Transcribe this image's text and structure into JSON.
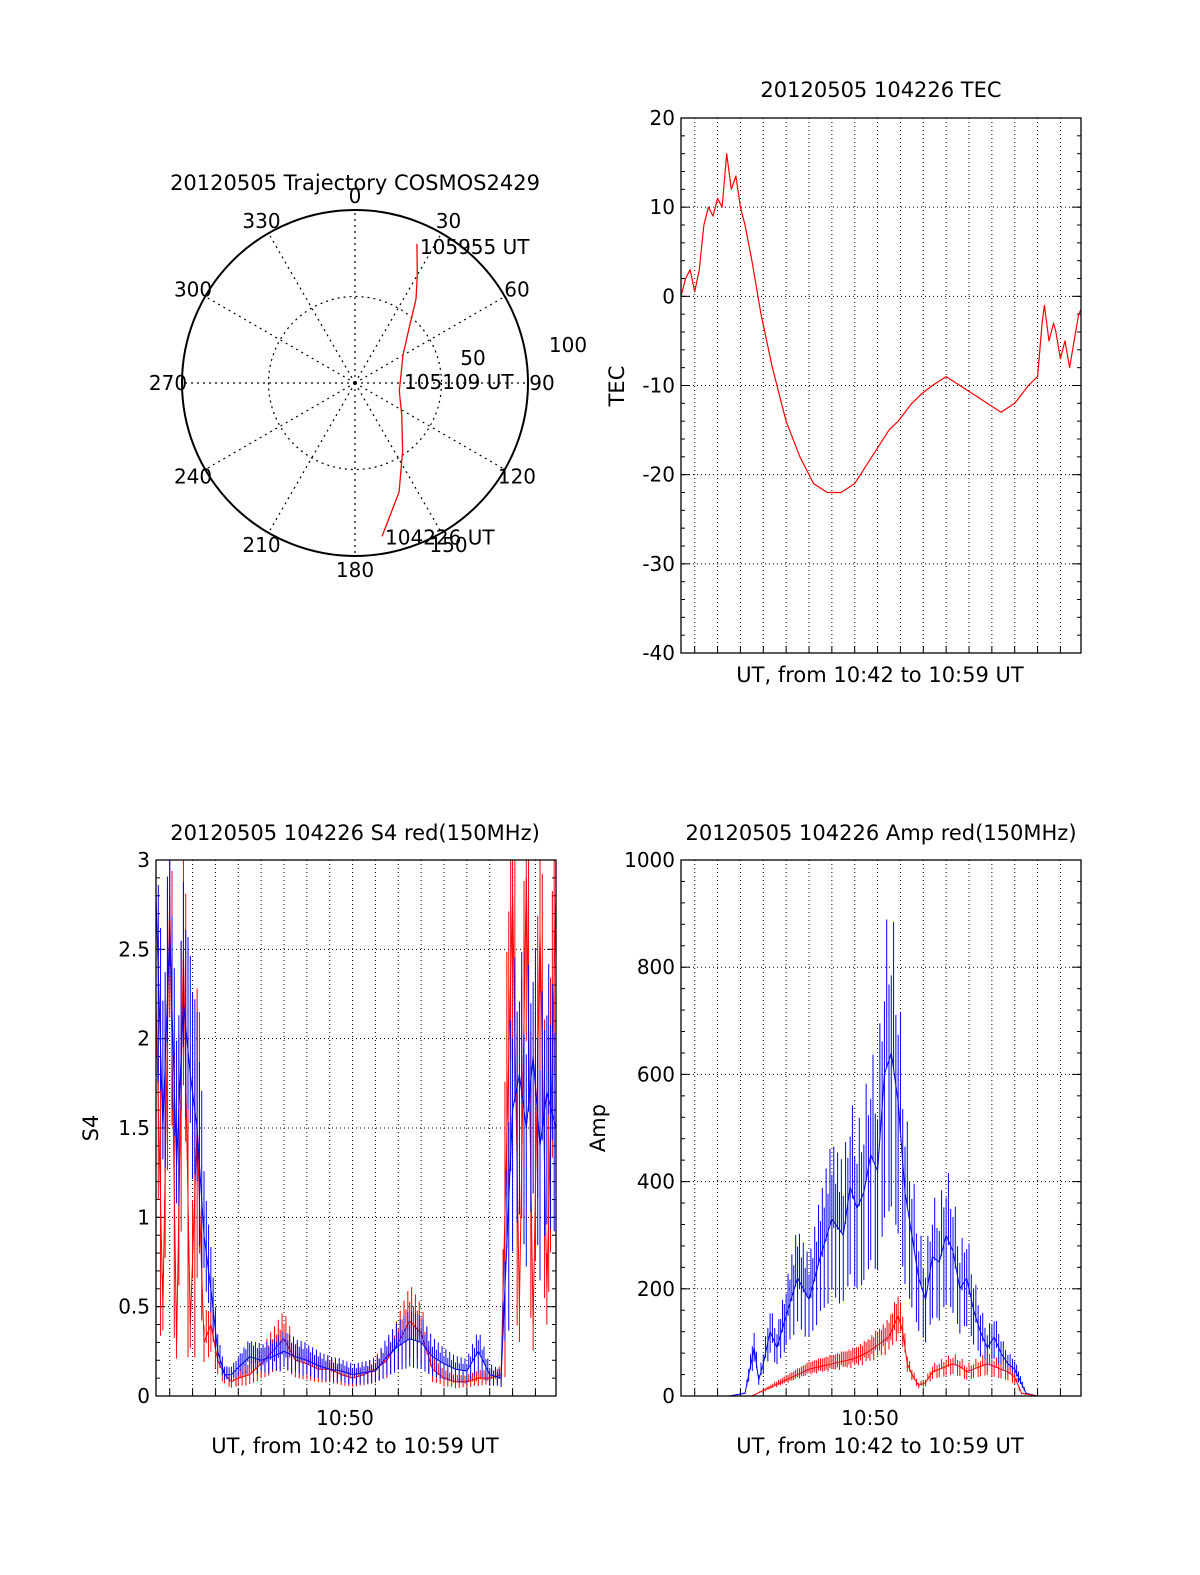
{
  "colors": {
    "red": "#ff0000",
    "blue": "#0000ff",
    "axis": "#000000",
    "grid": "#000000"
  },
  "chart_data": [
    {
      "type": "polar",
      "title": "20120505 Trajectory COSMOS2429",
      "angle_labels": [
        "0",
        "30",
        "60",
        "90",
        "120",
        "150",
        "180",
        "210",
        "240",
        "270",
        "300",
        "330"
      ],
      "radius_labels": [
        "50",
        "100"
      ],
      "rmax": 100,
      "track_labels": [
        {
          "text": "105955 UT",
          "at": "end"
        },
        {
          "text": "105109 UT",
          "at": "middle"
        },
        {
          "text": "104226 UT",
          "at": "start"
        }
      ],
      "trajectory": {
        "color": "red",
        "points": [
          {
            "az": 170,
            "r": 90
          },
          {
            "az": 158,
            "r": 68
          },
          {
            "az": 145,
            "r": 48
          },
          {
            "az": 125,
            "r": 33
          },
          {
            "az": 100,
            "r": 26
          },
          {
            "az": 80,
            "r": 27
          },
          {
            "az": 60,
            "r": 32
          },
          {
            "az": 45,
            "r": 44
          },
          {
            "az": 36,
            "r": 60
          },
          {
            "az": 30,
            "r": 72
          },
          {
            "az": 24,
            "r": 88
          }
        ]
      }
    },
    {
      "type": "line",
      "title": "20120505 104226 TEC",
      "ylabel": "TEC",
      "xlabel": "UT, from 10:42 to 10:59 UT",
      "xlim": [
        42.4,
        59.9
      ],
      "ylim": [
        -40,
        20
      ],
      "yticks": [
        "20",
        "10",
        "0",
        "-10",
        "-20",
        "-30",
        "-40"
      ],
      "grid": true,
      "series": [
        {
          "color": "red",
          "x": [
            42.4,
            42.6,
            42.8,
            43.0,
            43.2,
            43.4,
            43.6,
            43.8,
            44.0,
            44.2,
            44.4,
            44.6,
            44.8,
            45.0,
            45.2,
            45.5,
            45.9,
            46.4,
            47.0,
            47.6,
            48.2,
            48.8,
            49.4,
            50.0,
            50.5,
            51.0,
            51.5,
            51.9,
            52.2,
            52.5,
            52.9,
            53.4,
            54.0,
            54.6,
            55.2,
            55.8,
            56.4,
            57.0,
            57.6,
            58.0,
            58.2,
            58.3,
            58.5,
            58.7,
            58.8,
            59.0,
            59.2,
            59.4,
            59.6,
            59.8,
            59.9
          ],
          "y": [
            0,
            2,
            3,
            0.5,
            3,
            8,
            10,
            9,
            11,
            10,
            16,
            12,
            13.5,
            10,
            8,
            4,
            -2,
            -8,
            -14,
            -18,
            -21,
            -22,
            -22,
            -21,
            -19,
            -17,
            -15,
            -14,
            -13,
            -12,
            -11,
            -10,
            -9,
            -10,
            -11,
            -12,
            -13,
            -12,
            -10,
            -9,
            -3,
            -1,
            -5,
            -3,
            -4,
            -7,
            -5,
            -8,
            -5,
            -2,
            -1.5
          ]
        }
      ]
    },
    {
      "type": "line",
      "title": "20120505 104226 S4 red(150MHz)",
      "ylabel": "S4",
      "xlabel": "UT, from 10:42 to 10:59 UT",
      "xtick_label": "10:50",
      "xlim": [
        42.4,
        59.9
      ],
      "ylim": [
        0,
        3
      ],
      "yticks": [
        "3",
        "2.5",
        "2",
        "1.5",
        "1",
        "0.5",
        "0"
      ],
      "grid": true,
      "series": [
        {
          "color": "red",
          "x": [
            42.4,
            42.7,
            43.0,
            43.3,
            43.6,
            43.9,
            44.2,
            44.5,
            44.8,
            45.1,
            45.4,
            45.7,
            46.0,
            46.5,
            47.0,
            47.5,
            48.0,
            48.5,
            49.0,
            49.5,
            50.0,
            50.5,
            51.0,
            51.5,
            52.0,
            52.5,
            53.0,
            53.5,
            54.0,
            54.5,
            55.0,
            55.5,
            56.0,
            56.5,
            57.0,
            57.5,
            58.0,
            58.3,
            58.6,
            58.9,
            59.2,
            59.5,
            59.9
          ],
          "y": [
            2.2,
            0.5,
            2.8,
            0.3,
            2.5,
            0.4,
            1.5,
            0.3,
            0.4,
            0.2,
            0.12,
            0.08,
            0.1,
            0.12,
            0.18,
            0.25,
            0.32,
            0.2,
            0.18,
            0.15,
            0.15,
            0.12,
            0.1,
            0.12,
            0.15,
            0.2,
            0.3,
            0.42,
            0.35,
            0.15,
            0.1,
            0.08,
            0.08,
            0.1,
            0.1,
            0.12,
            2.8,
            0.5,
            2.9,
            0.4,
            2.6,
            0.6,
            2.8
          ]
        },
        {
          "color": "blue",
          "x": [
            42.4,
            42.7,
            43.0,
            43.3,
            43.6,
            43.9,
            44.2,
            44.5,
            44.8,
            45.1,
            45.4,
            45.7,
            46.0,
            46.5,
            47.0,
            47.5,
            48.0,
            48.5,
            49.0,
            49.5,
            50.0,
            50.5,
            51.0,
            51.5,
            52.0,
            52.5,
            53.0,
            53.5,
            54.0,
            54.5,
            55.0,
            55.5,
            56.0,
            56.5,
            57.0,
            57.5,
            58.0,
            58.3,
            58.6,
            58.9,
            59.2,
            59.5,
            59.9
          ],
          "y": [
            2.8,
            1.5,
            2.6,
            1.3,
            2.2,
            1.8,
            1.5,
            0.9,
            0.6,
            0.25,
            0.12,
            0.12,
            0.16,
            0.22,
            0.2,
            0.22,
            0.25,
            0.22,
            0.2,
            0.17,
            0.15,
            0.14,
            0.12,
            0.13,
            0.14,
            0.22,
            0.28,
            0.32,
            0.3,
            0.22,
            0.18,
            0.15,
            0.14,
            0.25,
            0.12,
            0.1,
            1.6,
            1.8,
            1.5,
            1.9,
            1.4,
            1.7,
            1.5
          ]
        }
      ]
    },
    {
      "type": "line",
      "title": "20120505 104226 Amp red(150MHz)",
      "ylabel": "Amp",
      "xlabel": "UT, from 10:42 to 10:59 UT",
      "xtick_label": "10:50",
      "xlim": [
        42.4,
        59.9
      ],
      "ylim": [
        0,
        1000
      ],
      "yticks": [
        "1000",
        "800",
        "600",
        "400",
        "200",
        "0"
      ],
      "grid": true,
      "series": [
        {
          "color": "blue",
          "x": [
            42.4,
            43.5,
            44.5,
            45.2,
            45.6,
            45.8,
            46.0,
            46.3,
            46.6,
            47.0,
            47.5,
            48.0,
            48.5,
            49.0,
            49.5,
            49.8,
            50.1,
            50.4,
            50.7,
            51.0,
            51.3,
            51.6,
            51.9,
            52.2,
            52.5,
            52.8,
            53.1,
            53.4,
            53.7,
            54.0,
            54.3,
            54.6,
            54.9,
            55.2,
            55.5,
            55.8,
            56.1,
            56.4,
            56.7,
            57.0,
            57.5,
            58.0,
            59.0,
            59.9
          ],
          "y": [
            0,
            0,
            0,
            5,
            90,
            30,
            60,
            120,
            90,
            150,
            220,
            180,
            260,
            330,
            300,
            390,
            350,
            380,
            450,
            420,
            600,
            640,
            550,
            380,
            300,
            220,
            180,
            260,
            250,
            300,
            270,
            200,
            220,
            160,
            120,
            90,
            110,
            80,
            60,
            50,
            5,
            0,
            0,
            0
          ]
        },
        {
          "color": "red",
          "x": [
            42.4,
            45.5,
            46.0,
            46.5,
            47.0,
            47.5,
            48.0,
            48.5,
            49.0,
            49.5,
            50.0,
            50.5,
            51.0,
            51.5,
            51.9,
            52.1,
            52.3,
            52.5,
            52.8,
            53.1,
            53.4,
            53.7,
            54.0,
            54.3,
            54.6,
            54.9,
            55.2,
            55.5,
            55.8,
            56.1,
            56.4,
            56.7,
            57.0,
            57.3,
            58.0,
            59.9
          ],
          "y": [
            0,
            0,
            10,
            20,
            30,
            40,
            50,
            55,
            60,
            65,
            70,
            80,
            95,
            110,
            150,
            120,
            60,
            40,
            20,
            25,
            45,
            50,
            55,
            60,
            55,
            45,
            50,
            55,
            60,
            55,
            50,
            45,
            35,
            5,
            0,
            0
          ]
        }
      ]
    }
  ]
}
